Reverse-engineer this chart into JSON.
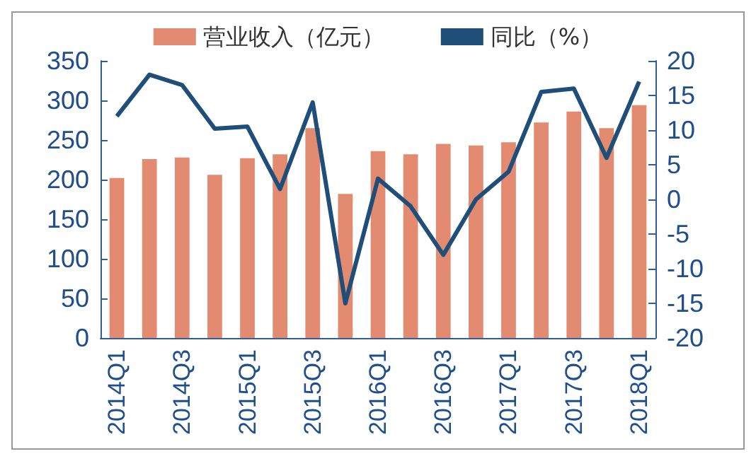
{
  "chart_data": {
    "type": "bar",
    "categories": [
      "2014Q1",
      null,
      "2014Q3",
      null,
      "2015Q1",
      null,
      "2015Q3",
      null,
      "2016Q1",
      null,
      "2016Q3",
      null,
      "2017Q1",
      null,
      "2017Q3",
      null,
      "2018Q1"
    ],
    "series": [
      {
        "name": "营业收入（亿元）",
        "color": "#e38b70",
        "values": [
          202,
          226,
          228,
          206,
          227,
          232,
          265,
          182,
          236,
          232,
          245,
          243,
          247,
          272,
          286,
          265,
          294
        ]
      },
      {
        "name": "同比（%）",
        "type": "line",
        "axis": "y2",
        "color": "#1f4e79",
        "values": [
          12,
          18,
          16.5,
          10.2,
          10.5,
          1.5,
          14,
          -15,
          3,
          -1,
          -8,
          0,
          4,
          15.5,
          16,
          6,
          17
        ]
      }
    ],
    "ylim": [
      0,
      350
    ],
    "yticks": [
      0,
      50,
      100,
      150,
      200,
      250,
      300,
      350
    ],
    "y2lim": [
      -20,
      20
    ],
    "y2ticks": [
      -20,
      -15,
      -10,
      -5,
      0,
      5,
      10,
      15,
      20
    ],
    "grid": false,
    "legend": "top",
    "marker": "none",
    "line_style": "solid"
  }
}
